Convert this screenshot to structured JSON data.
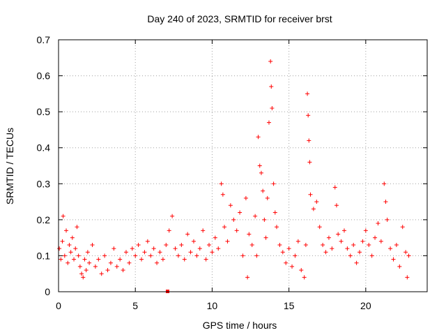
{
  "chart_data": {
    "type": "scatter",
    "title": "Day 240 of 2023, SRMTID for receiver brst",
    "xlabel": "GPS time / hours",
    "ylabel": "SRMTID / TECUs",
    "xlim": [
      0,
      24
    ],
    "ylim": [
      0,
      0.7
    ],
    "x_ticks": [
      "0",
      "5",
      "10",
      "15",
      "20"
    ],
    "x_tick_values": [
      0,
      5,
      10,
      15,
      20
    ],
    "y_ticks": [
      "0",
      "0.1",
      "0.2",
      "0.3",
      "0.4",
      "0.5",
      "0.6",
      "0.7"
    ],
    "y_tick_values": [
      0,
      0.1,
      0.2,
      0.3,
      0.4,
      0.5,
      0.6,
      0.7
    ],
    "grid": true,
    "marker": "plus",
    "color": "#ff0000",
    "series": [
      {
        "name": "brst",
        "points": [
          [
            0.05,
            0.12
          ],
          [
            0.15,
            0.09
          ],
          [
            0.25,
            0.14
          ],
          [
            0.3,
            0.21
          ],
          [
            0.4,
            0.1
          ],
          [
            0.5,
            0.17
          ],
          [
            0.6,
            0.08
          ],
          [
            0.7,
            0.13
          ],
          [
            0.8,
            0.11
          ],
          [
            0.9,
            0.15
          ],
          [
            1.0,
            0.09
          ],
          [
            1.1,
            0.12
          ],
          [
            1.2,
            0.18
          ],
          [
            1.3,
            0.1
          ],
          [
            1.4,
            0.07
          ],
          [
            1.5,
            0.05
          ],
          [
            1.6,
            0.04
          ],
          [
            1.7,
            0.09
          ],
          [
            1.8,
            0.06
          ],
          [
            1.9,
            0.11
          ],
          [
            2.0,
            0.08
          ],
          [
            2.2,
            0.13
          ],
          [
            2.4,
            0.07
          ],
          [
            2.6,
            0.09
          ],
          [
            2.8,
            0.05
          ],
          [
            3.0,
            0.1
          ],
          [
            3.2,
            0.06
          ],
          [
            3.4,
            0.08
          ],
          [
            3.6,
            0.12
          ],
          [
            3.8,
            0.07
          ],
          [
            4.0,
            0.09
          ],
          [
            4.2,
            0.06
          ],
          [
            4.4,
            0.11
          ],
          [
            4.6,
            0.08
          ],
          [
            4.8,
            0.12
          ],
          [
            5.0,
            0.1
          ],
          [
            5.2,
            0.13
          ],
          [
            5.4,
            0.09
          ],
          [
            5.6,
            0.11
          ],
          [
            5.8,
            0.14
          ],
          [
            6.0,
            0.1
          ],
          [
            6.2,
            0.12
          ],
          [
            6.4,
            0.08
          ],
          [
            6.6,
            0.11
          ],
          [
            6.8,
            0.09
          ],
          [
            7.0,
            0.13
          ],
          [
            7.2,
            0.17
          ],
          [
            7.4,
            0.21
          ],
          [
            7.6,
            0.12
          ],
          [
            7.8,
            0.1
          ],
          [
            8.0,
            0.13
          ],
          [
            8.2,
            0.09
          ],
          [
            8.4,
            0.16
          ],
          [
            8.6,
            0.11
          ],
          [
            8.8,
            0.14
          ],
          [
            9.0,
            0.1
          ],
          [
            9.2,
            0.12
          ],
          [
            9.4,
            0.17
          ],
          [
            9.6,
            0.09
          ],
          [
            9.8,
            0.13
          ],
          [
            10.0,
            0.11
          ],
          [
            10.2,
            0.15
          ],
          [
            10.4,
            0.12
          ],
          [
            10.6,
            0.3
          ],
          [
            10.7,
            0.27
          ],
          [
            10.8,
            0.18
          ],
          [
            11.0,
            0.14
          ],
          [
            11.2,
            0.24
          ],
          [
            11.4,
            0.2
          ],
          [
            11.6,
            0.17
          ],
          [
            11.8,
            0.22
          ],
          [
            12.0,
            0.1
          ],
          [
            12.2,
            0.26
          ],
          [
            12.3,
            0.04
          ],
          [
            12.4,
            0.16
          ],
          [
            12.6,
            0.13
          ],
          [
            12.8,
            0.21
          ],
          [
            12.9,
            0.1
          ],
          [
            13.0,
            0.43
          ],
          [
            13.1,
            0.35
          ],
          [
            13.2,
            0.33
          ],
          [
            13.3,
            0.28
          ],
          [
            13.4,
            0.2
          ],
          [
            13.5,
            0.15
          ],
          [
            13.6,
            0.26
          ],
          [
            13.7,
            0.47
          ],
          [
            13.8,
            0.64
          ],
          [
            13.85,
            0.57
          ],
          [
            13.9,
            0.51
          ],
          [
            14.0,
            0.3
          ],
          [
            14.1,
            0.22
          ],
          [
            14.2,
            0.18
          ],
          [
            14.4,
            0.13
          ],
          [
            14.6,
            0.11
          ],
          [
            14.8,
            0.08
          ],
          [
            15.0,
            0.12
          ],
          [
            15.2,
            0.07
          ],
          [
            15.4,
            0.1
          ],
          [
            15.6,
            0.14
          ],
          [
            15.8,
            0.06
          ],
          [
            16.0,
            0.04
          ],
          [
            16.1,
            0.13
          ],
          [
            16.2,
            0.55
          ],
          [
            16.25,
            0.49
          ],
          [
            16.3,
            0.42
          ],
          [
            16.35,
            0.36
          ],
          [
            16.4,
            0.27
          ],
          [
            16.6,
            0.23
          ],
          [
            16.8,
            0.25
          ],
          [
            17.0,
            0.18
          ],
          [
            17.2,
            0.13
          ],
          [
            17.4,
            0.11
          ],
          [
            17.6,
            0.15
          ],
          [
            17.8,
            0.12
          ],
          [
            18.0,
            0.29
          ],
          [
            18.1,
            0.24
          ],
          [
            18.2,
            0.16
          ],
          [
            18.4,
            0.14
          ],
          [
            18.6,
            0.17
          ],
          [
            18.8,
            0.12
          ],
          [
            19.0,
            0.1
          ],
          [
            19.2,
            0.13
          ],
          [
            19.4,
            0.08
          ],
          [
            19.6,
            0.11
          ],
          [
            19.8,
            0.14
          ],
          [
            20.0,
            0.17
          ],
          [
            20.2,
            0.13
          ],
          [
            20.4,
            0.1
          ],
          [
            20.6,
            0.15
          ],
          [
            20.8,
            0.19
          ],
          [
            21.0,
            0.14
          ],
          [
            21.2,
            0.3
          ],
          [
            21.3,
            0.25
          ],
          [
            21.4,
            0.2
          ],
          [
            21.6,
            0.12
          ],
          [
            21.8,
            0.09
          ],
          [
            22.0,
            0.13
          ],
          [
            22.2,
            0.07
          ],
          [
            22.4,
            0.18
          ],
          [
            22.6,
            0.11
          ],
          [
            22.7,
            0.04
          ],
          [
            22.8,
            0.1
          ]
        ]
      }
    ],
    "outlier_marker": {
      "x": 7.1,
      "y": 0.0
    }
  }
}
